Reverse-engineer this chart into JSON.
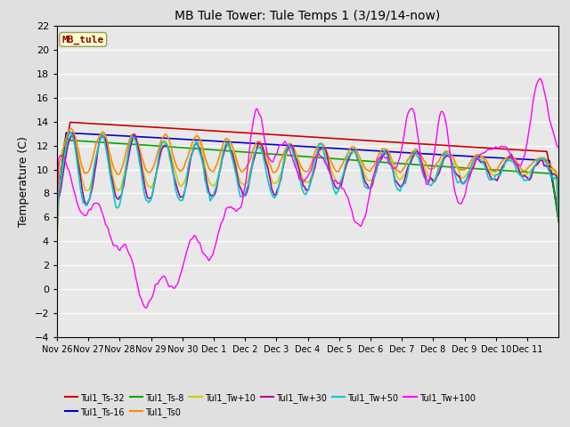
{
  "title": "MB Tule Tower: Tule Temps 1 (3/19/14-now)",
  "ylabel": "Temperature (C)",
  "ylim": [
    -4,
    22
  ],
  "yticks": [
    -4,
    -2,
    0,
    2,
    4,
    6,
    8,
    10,
    12,
    14,
    16,
    18,
    20,
    22
  ],
  "bg_color": "#e0e0e0",
  "plot_bg_color": "#e8e8e8",
  "annotation_text": "MB_tule",
  "annotation_color": "#8b0000",
  "annotation_bg": "#ffffcc",
  "series": {
    "Tul1_Ts-32": {
      "color": "#cc0000",
      "lw": 1.2
    },
    "Tul1_Ts-16": {
      "color": "#0000cc",
      "lw": 1.2
    },
    "Tul1_Ts-8": {
      "color": "#00aa00",
      "lw": 1.2
    },
    "Tul1_Ts0": {
      "color": "#ff8800",
      "lw": 1.2
    },
    "Tul1_Tw+10": {
      "color": "#cccc00",
      "lw": 1.2
    },
    "Tul1_Tw+30": {
      "color": "#aa00aa",
      "lw": 1.2
    },
    "Tul1_Tw+50": {
      "color": "#00cccc",
      "lw": 1.2
    },
    "Tul1_Tw+100": {
      "color": "#ff00ff",
      "lw": 1.0
    }
  },
  "xticklabels": [
    "Nov 26",
    "Nov 27",
    "Nov 28",
    "Nov 29",
    "Nov 30",
    "Dec 1",
    "Dec 2",
    "Dec 3",
    "Dec 4",
    "Dec 5",
    "Dec 6",
    "Dec 7",
    "Dec 8",
    "Dec 9",
    "Dec 10",
    "Dec 11"
  ],
  "legend_order": [
    "Tul1_Ts-32",
    "Tul1_Ts-16",
    "Tul1_Ts-8",
    "Tul1_Ts0",
    "Tul1_Tw+10",
    "Tul1_Tw+30",
    "Tul1_Tw+50",
    "Tul1_Tw+100"
  ]
}
